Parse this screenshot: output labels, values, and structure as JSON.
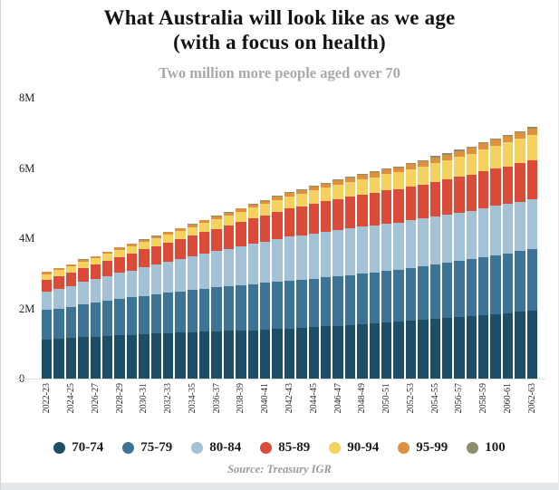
{
  "page": {
    "title_line1": "What Australia will look like as we age",
    "title_line2": "(with a focus on health)",
    "subtitle": "Two million more people aged over 70",
    "source": "Source: Treasury IGR"
  },
  "chart_data": {
    "type": "bar",
    "stacked": true,
    "title": "What Australia will look like as we age (with a focus on health)",
    "subtitle": "Two million more people aged over 70",
    "unit": "millions of people aged 70+",
    "ylim": [
      0,
      8
    ],
    "yticks": [
      {
        "v": 8,
        "label": "8M"
      },
      {
        "v": 6,
        "label": "6M"
      },
      {
        "v": 4,
        "label": "4M"
      },
      {
        "v": 2,
        "label": "2M"
      },
      {
        "v": 0,
        "label": "0"
      }
    ],
    "grid": false,
    "legend_position": "bottom",
    "x_tick_every": 2,
    "x": [
      "2022-23",
      "2023-24",
      "2024-25",
      "2025-26",
      "2026-27",
      "2027-28",
      "2028-29",
      "2029-30",
      "2030-31",
      "2031-32",
      "2032-33",
      "2033-34",
      "2034-35",
      "2035-36",
      "2036-37",
      "2037-38",
      "2038-39",
      "2039-40",
      "2040-41",
      "2041-42",
      "2042-43",
      "2043-44",
      "2044-45",
      "2045-46",
      "2046-47",
      "2047-48",
      "2048-49",
      "2049-50",
      "2050-51",
      "2051-52",
      "2052-53",
      "2053-54",
      "2054-55",
      "2055-56",
      "2056-57",
      "2057-58",
      "2058-59",
      "2059-60",
      "2060-61",
      "2061-62",
      "2062-63"
    ],
    "series": [
      {
        "name": "70-74",
        "color": "#1d4e68",
        "values": [
          1.11,
          1.13,
          1.15,
          1.18,
          1.2,
          1.22,
          1.24,
          1.25,
          1.27,
          1.28,
          1.3,
          1.31,
          1.32,
          1.34,
          1.35,
          1.36,
          1.37,
          1.38,
          1.4,
          1.41,
          1.42,
          1.44,
          1.46,
          1.49,
          1.51,
          1.53,
          1.55,
          1.58,
          1.6,
          1.62,
          1.65,
          1.68,
          1.7,
          1.73,
          1.75,
          1.78,
          1.81,
          1.84,
          1.87,
          1.9,
          1.93
        ]
      },
      {
        "name": "75-79",
        "color": "#3d7495",
        "values": [
          0.84,
          0.87,
          0.9,
          0.94,
          0.97,
          1.0,
          1.03,
          1.06,
          1.09,
          1.12,
          1.15,
          1.17,
          1.2,
          1.22,
          1.25,
          1.27,
          1.29,
          1.31,
          1.33,
          1.35,
          1.37,
          1.38,
          1.39,
          1.4,
          1.41,
          1.42,
          1.44,
          1.45,
          1.47,
          1.48,
          1.5,
          1.52,
          1.55,
          1.57,
          1.6,
          1.62,
          1.65,
          1.68,
          1.7,
          1.73,
          1.76
        ]
      },
      {
        "name": "80-84",
        "color": "#a4c2d6",
        "values": [
          0.52,
          0.56,
          0.59,
          0.63,
          0.66,
          0.7,
          0.74,
          0.77,
          0.81,
          0.84,
          0.88,
          0.92,
          0.96,
          0.99,
          1.03,
          1.07,
          1.11,
          1.15,
          1.18,
          1.22,
          1.26,
          1.27,
          1.29,
          1.3,
          1.32,
          1.33,
          1.34,
          1.34,
          1.35,
          1.35,
          1.36,
          1.36,
          1.37,
          1.37,
          1.38,
          1.38,
          1.39,
          1.4,
          1.4,
          1.41,
          1.42
        ]
      },
      {
        "name": "85-89",
        "color": "#da4b3a",
        "values": [
          0.35,
          0.37,
          0.39,
          0.4,
          0.42,
          0.44,
          0.46,
          0.48,
          0.51,
          0.53,
          0.55,
          0.57,
          0.59,
          0.62,
          0.64,
          0.66,
          0.69,
          0.72,
          0.74,
          0.77,
          0.8,
          0.82,
          0.84,
          0.86,
          0.88,
          0.9,
          0.91,
          0.92,
          0.94,
          0.95,
          0.96,
          0.97,
          0.99,
          1.0,
          1.02,
          1.03,
          1.05,
          1.06,
          1.08,
          1.09,
          1.11
        ]
      },
      {
        "name": "90-94",
        "color": "#f5d15f",
        "values": [
          0.16,
          0.17,
          0.17,
          0.18,
          0.18,
          0.19,
          0.2,
          0.21,
          0.21,
          0.22,
          0.23,
          0.24,
          0.25,
          0.26,
          0.27,
          0.28,
          0.29,
          0.31,
          0.32,
          0.34,
          0.35,
          0.36,
          0.38,
          0.39,
          0.41,
          0.42,
          0.44,
          0.45,
          0.47,
          0.48,
          0.5,
          0.52,
          0.54,
          0.56,
          0.58,
          0.6,
          0.63,
          0.65,
          0.68,
          0.7,
          0.73
        ]
      },
      {
        "name": "95-99",
        "color": "#dd9140",
        "values": [
          0.056,
          0.057,
          0.059,
          0.06,
          0.062,
          0.063,
          0.065,
          0.068,
          0.07,
          0.073,
          0.075,
          0.078,
          0.08,
          0.083,
          0.085,
          0.088,
          0.09,
          0.093,
          0.095,
          0.098,
          0.1,
          0.105,
          0.11,
          0.115,
          0.12,
          0.125,
          0.129,
          0.133,
          0.137,
          0.141,
          0.145,
          0.149,
          0.153,
          0.157,
          0.161,
          0.165,
          0.169,
          0.173,
          0.177,
          0.181,
          0.185
        ]
      },
      {
        "name": "100",
        "color": "#8e8f68",
        "values": [
          0.004,
          0.005,
          0.005,
          0.006,
          0.006,
          0.007,
          0.008,
          0.008,
          0.009,
          0.009,
          0.01,
          0.01,
          0.011,
          0.011,
          0.012,
          0.012,
          0.014,
          0.015,
          0.017,
          0.018,
          0.02,
          0.021,
          0.022,
          0.023,
          0.024,
          0.025,
          0.026,
          0.027,
          0.028,
          0.029,
          0.03,
          0.032,
          0.034,
          0.036,
          0.038,
          0.04,
          0.042,
          0.044,
          0.046,
          0.048,
          0.05
        ]
      }
    ]
  }
}
